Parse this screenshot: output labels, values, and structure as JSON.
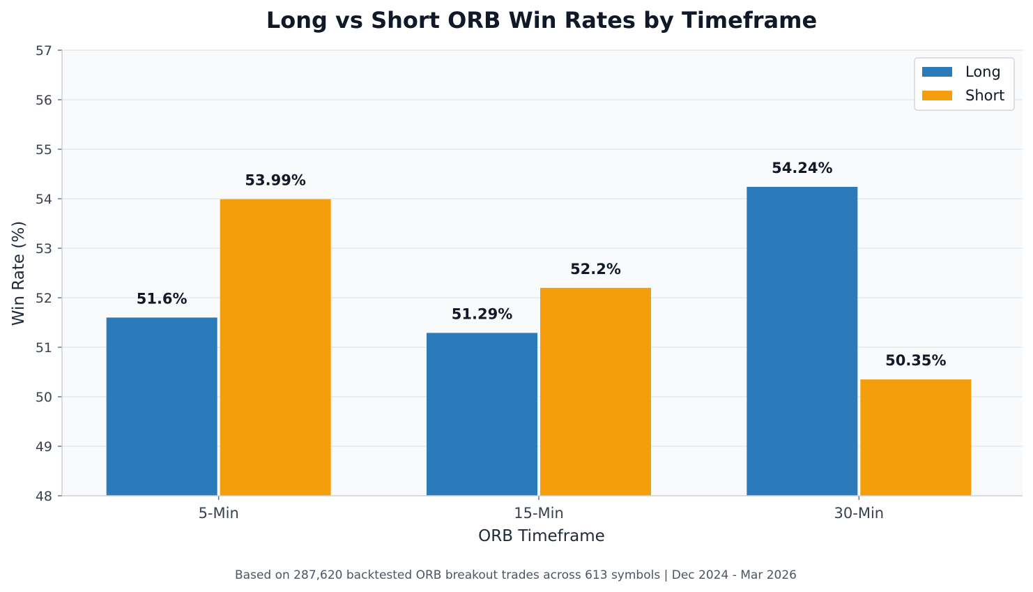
{
  "chart_data": {
    "type": "bar",
    "title": "Long vs Short ORB Win Rates by Timeframe",
    "xlabel": "ORB Timeframe",
    "ylabel": "Win Rate (%)",
    "categories": [
      "5-Min",
      "15-Min",
      "30-Min"
    ],
    "series": [
      {
        "name": "Long",
        "values": [
          51.6,
          51.29,
          54.24
        ],
        "labels": [
          "51.6%",
          "51.29%",
          "54.24%"
        ],
        "color": "#2b7bba"
      },
      {
        "name": "Short",
        "values": [
          53.99,
          52.2,
          50.35
        ],
        "labels": [
          "53.99%",
          "52.2%",
          "50.35%"
        ],
        "color": "#f59e0b"
      }
    ],
    "ylim": [
      48,
      57
    ],
    "yticks": [
      48,
      49,
      50,
      51,
      52,
      53,
      54,
      55,
      56,
      57
    ],
    "grid": true,
    "legend_position": "top-right",
    "footnote": "Based on 287,620 backtested ORB breakout trades across 613 symbols | Dec 2024 - Mar 2026"
  },
  "colors": {
    "plot_background": "#f8fafc",
    "grid": "#e5e9ef",
    "axis": "#cbd2da"
  }
}
